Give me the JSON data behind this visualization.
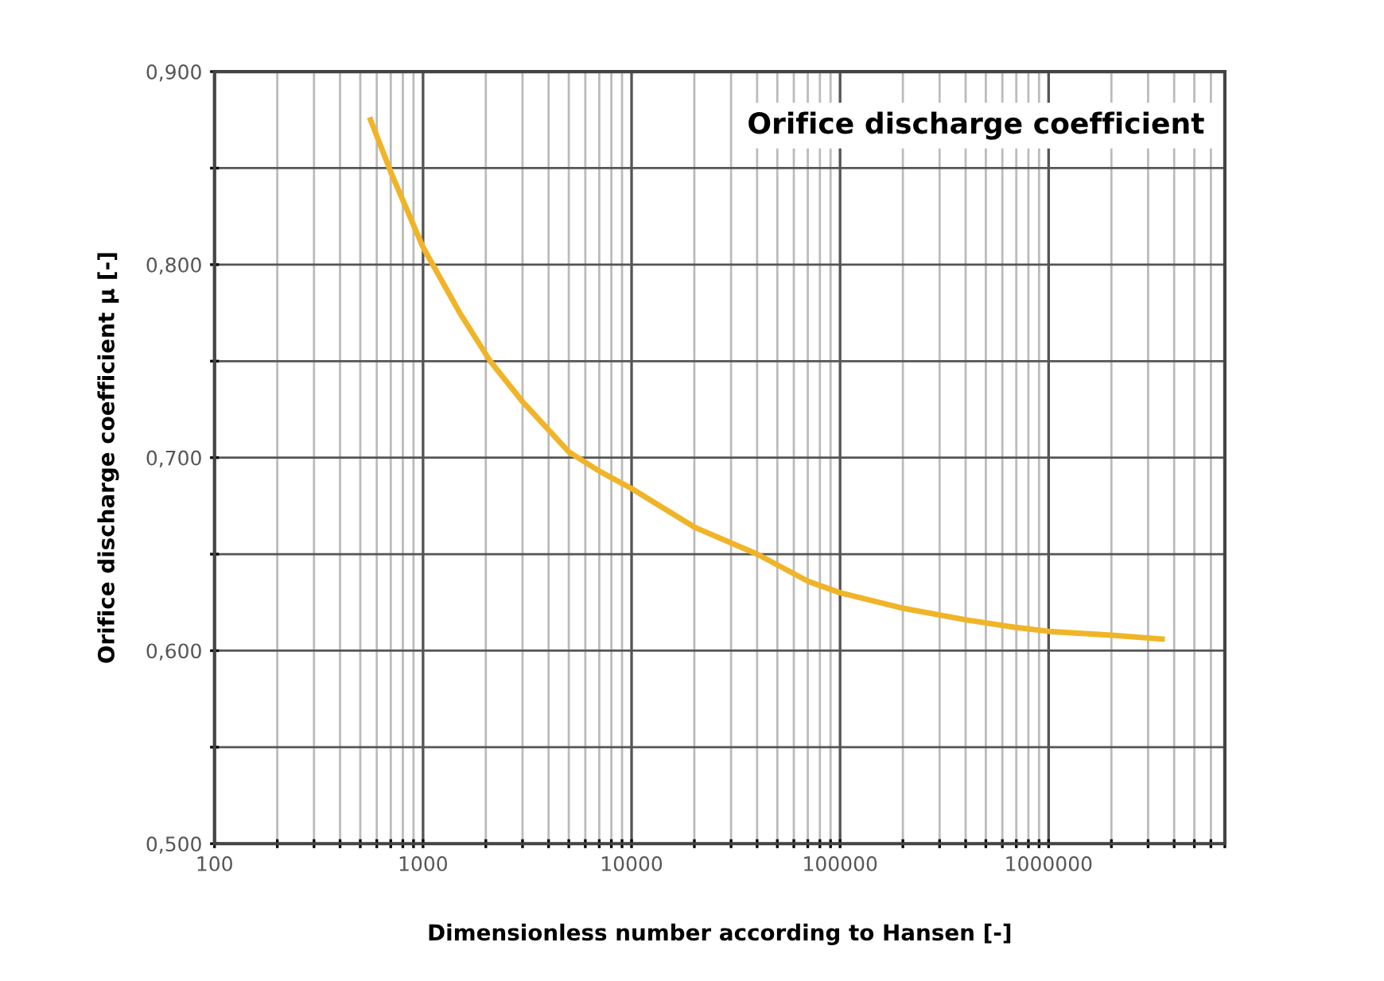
{
  "chart_data": {
    "type": "line",
    "title": "Orifice discharge coefficient",
    "xlabel": "Dimensionless number according to Hansen [-]",
    "ylabel": "Orifice discharge coefficient μ [-]",
    "log": "x",
    "grid": true,
    "legend": false,
    "marker": "none",
    "line_style": "solid",
    "xlim": [
      100,
      7000000
    ],
    "ylim": [
      0.5,
      0.9
    ],
    "xticks": [
      100,
      {
        "value": 200,
        "label": null
      },
      {
        "value": 300,
        "label": null
      },
      {
        "value": 400,
        "label": null
      },
      {
        "value": 500,
        "label": null
      },
      {
        "value": 600,
        "label": null
      },
      {
        "value": 700,
        "label": null
      },
      {
        "value": 800,
        "label": null
      },
      {
        "value": 900,
        "label": null
      },
      1000,
      {
        "value": 2000,
        "label": null
      },
      {
        "value": 3000,
        "label": null
      },
      {
        "value": 4000,
        "label": null
      },
      {
        "value": 5000,
        "label": null
      },
      {
        "value": 6000,
        "label": null
      },
      {
        "value": 7000,
        "label": null
      },
      {
        "value": 8000,
        "label": null
      },
      {
        "value": 9000,
        "label": null
      },
      10000,
      {
        "value": 20000,
        "label": null
      },
      {
        "value": 30000,
        "label": null
      },
      {
        "value": 40000,
        "label": null
      },
      {
        "value": 50000,
        "label": null
      },
      {
        "value": 60000,
        "label": null
      },
      {
        "value": 70000,
        "label": null
      },
      {
        "value": 80000,
        "label": null
      },
      {
        "value": 90000,
        "label": null
      },
      100000,
      {
        "value": 200000,
        "label": null
      },
      {
        "value": 300000,
        "label": null
      },
      {
        "value": 400000,
        "label": null
      },
      {
        "value": 500000,
        "label": null
      },
      {
        "value": 600000,
        "label": null
      },
      {
        "value": 700000,
        "label": null
      },
      {
        "value": 800000,
        "label": null
      },
      {
        "value": 900000,
        "label": null
      },
      1000000,
      {
        "value": 2000000,
        "label": null
      },
      {
        "value": 3000000,
        "label": null
      },
      {
        "value": 4000000,
        "label": null
      },
      {
        "value": 5000000,
        "label": null
      },
      {
        "value": 6000000,
        "label": null
      },
      {
        "value": 7000000,
        "label": null
      }
    ],
    "yticks": [
      {
        "value": 0.5,
        "label": "0,500"
      },
      {
        "value": 0.55,
        "label": null
      },
      {
        "value": 0.6,
        "label": "0,600"
      },
      {
        "value": 0.65,
        "label": null
      },
      {
        "value": 0.7,
        "label": "0,700"
      },
      {
        "value": 0.75,
        "label": null
      },
      {
        "value": 0.8,
        "label": "0,800"
      },
      {
        "value": 0.85,
        "label": null
      },
      {
        "value": 0.9,
        "label": "0,900"
      }
    ],
    "series": [
      {
        "color": "#f0b428",
        "x": [
          560,
          700,
          1000,
          1500,
          2100,
          3000,
          5000,
          7000,
          10000,
          20000,
          40000,
          70000,
          100000,
          200000,
          400000,
          700000,
          1000000,
          2000000,
          3500000
        ],
        "values": [
          0.875,
          0.848,
          0.809,
          0.775,
          0.75,
          0.729,
          0.703,
          0.693,
          0.684,
          0.664,
          0.65,
          0.636,
          0.63,
          0.622,
          0.616,
          0.612,
          0.61,
          0.608,
          0.606
        ]
      }
    ]
  }
}
